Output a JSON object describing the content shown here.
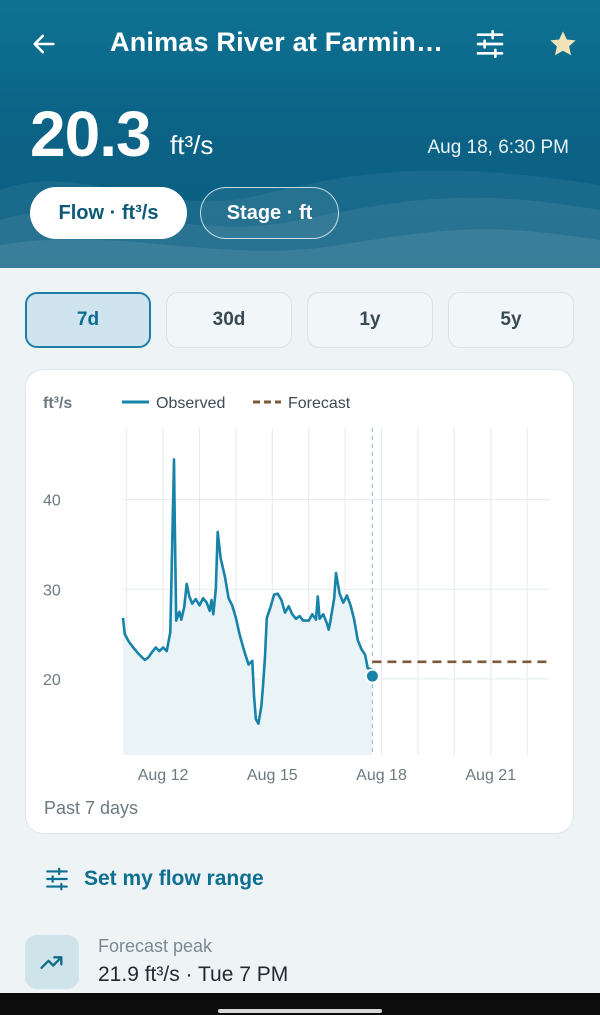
{
  "header": {
    "title": "Animas River at Farmin…",
    "reading_value": "20.3",
    "reading_unit": "ft³/s",
    "reading_time": "Aug 18, 6:30 PM",
    "param_tabs": [
      {
        "label": "Flow · ft³/s",
        "active": true
      },
      {
        "label": "Stage · ft",
        "active": false
      }
    ],
    "icons": {
      "back": "arrow-back-icon",
      "filter": "tune-icon",
      "favorite": "star-icon"
    },
    "colors": {
      "header_bg": "#0b6386",
      "star": "#f1e3b8"
    }
  },
  "range_tabs": [
    {
      "label": "7d",
      "active": true
    },
    {
      "label": "30d",
      "active": false
    },
    {
      "label": "1y",
      "active": false
    },
    {
      "label": "5y",
      "active": false
    }
  ],
  "chart_data": {
    "type": "line",
    "ylabel": "ft³/s",
    "yticks": [
      20,
      30,
      40
    ],
    "ylim": [
      11.5,
      48
    ],
    "x_unit": "days from Aug 11 0:00",
    "xlim": [
      0.9,
      12.6
    ],
    "xtick_labels": [
      "Aug 12",
      "Aug 15",
      "Aug 18",
      "Aug 21"
    ],
    "xtick_values": [
      2,
      5,
      8,
      11
    ],
    "now_x": 7.75,
    "current_value": 20.3,
    "caption": "Past 7 days",
    "series": [
      {
        "name": "Observed",
        "color": "#1783a8",
        "style": "solid",
        "points": [
          [
            0.9,
            26.8
          ],
          [
            0.95,
            25
          ],
          [
            1.05,
            24.2
          ],
          [
            1.2,
            23.4
          ],
          [
            1.35,
            22.7
          ],
          [
            1.5,
            22.1
          ],
          [
            1.6,
            22.4
          ],
          [
            1.7,
            23
          ],
          [
            1.8,
            23.5
          ],
          [
            1.9,
            23.1
          ],
          [
            2.0,
            23.5
          ],
          [
            2.1,
            23.1
          ],
          [
            2.2,
            25.2
          ],
          [
            2.25,
            35
          ],
          [
            2.3,
            44.5
          ],
          [
            2.32,
            38
          ],
          [
            2.36,
            26.5
          ],
          [
            2.45,
            27.5
          ],
          [
            2.5,
            26.6
          ],
          [
            2.58,
            28
          ],
          [
            2.65,
            30.6
          ],
          [
            2.72,
            29.2
          ],
          [
            2.8,
            28.4
          ],
          [
            2.9,
            28.9
          ],
          [
            3.0,
            28.2
          ],
          [
            3.1,
            29
          ],
          [
            3.2,
            28.5
          ],
          [
            3.28,
            27.6
          ],
          [
            3.33,
            28.8
          ],
          [
            3.38,
            27.2
          ],
          [
            3.45,
            30
          ],
          [
            3.5,
            36.4
          ],
          [
            3.58,
            33.5
          ],
          [
            3.7,
            31.4
          ],
          [
            3.8,
            29
          ],
          [
            3.9,
            28.2
          ],
          [
            4.0,
            26.8
          ],
          [
            4.1,
            25
          ],
          [
            4.2,
            23.5
          ],
          [
            4.3,
            22.2
          ],
          [
            4.35,
            21.6
          ],
          [
            4.45,
            22
          ],
          [
            4.5,
            18
          ],
          [
            4.55,
            15.5
          ],
          [
            4.62,
            15
          ],
          [
            4.7,
            17
          ],
          [
            4.75,
            19.5
          ],
          [
            4.8,
            22.5
          ],
          [
            4.85,
            26.8
          ],
          [
            4.95,
            28
          ],
          [
            5.05,
            29.4
          ],
          [
            5.15,
            29.5
          ],
          [
            5.25,
            28.8
          ],
          [
            5.35,
            27.4
          ],
          [
            5.45,
            28.1
          ],
          [
            5.55,
            27.2
          ],
          [
            5.65,
            26.7
          ],
          [
            5.75,
            27
          ],
          [
            5.85,
            26.5
          ],
          [
            6.0,
            26.5
          ],
          [
            6.1,
            27.2
          ],
          [
            6.2,
            26.6
          ],
          [
            6.25,
            29.2
          ],
          [
            6.3,
            26.7
          ],
          [
            6.4,
            27.2
          ],
          [
            6.5,
            26.2
          ],
          [
            6.55,
            25.5
          ],
          [
            6.6,
            26.5
          ],
          [
            6.7,
            29
          ],
          [
            6.75,
            31.8
          ],
          [
            6.85,
            29.5
          ],
          [
            6.95,
            28.5
          ],
          [
            7.05,
            29.3
          ],
          [
            7.15,
            28.2
          ],
          [
            7.25,
            26.6
          ],
          [
            7.35,
            24.3
          ],
          [
            7.45,
            23.3
          ],
          [
            7.55,
            22.7
          ],
          [
            7.62,
            21.2
          ],
          [
            7.7,
            21.1
          ],
          [
            7.75,
            20.3
          ]
        ]
      },
      {
        "name": "Forecast",
        "color": "#7b5a3c",
        "style": "dashed",
        "points": [
          [
            7.75,
            21.9
          ],
          [
            12.6,
            21.9
          ]
        ]
      }
    ]
  },
  "flow_range": {
    "label": "Set my flow range",
    "icon": "tune-icon"
  },
  "forecast_peak": {
    "icon": "trending-up-icon",
    "label": "Forecast peak",
    "value": "21.9 ft³/s · Tue 7 PM"
  }
}
